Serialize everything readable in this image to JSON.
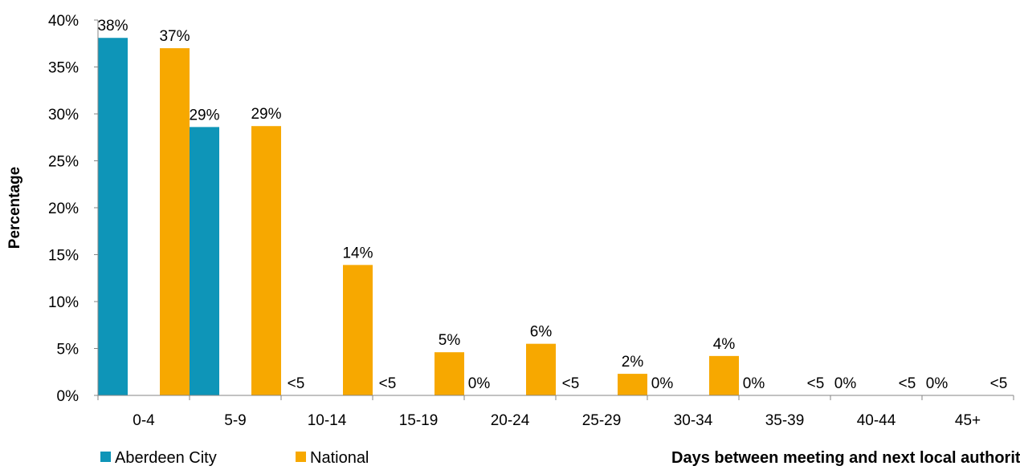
{
  "chart_data": {
    "type": "bar",
    "title": "",
    "xlabel": "Days between meeting and next local authority contact",
    "ylabel": "Percentage",
    "ylim": [
      0,
      40
    ],
    "yticks": [
      "0%",
      "5%",
      "10%",
      "15%",
      "20%",
      "25%",
      "30%",
      "35%",
      "40%"
    ],
    "grid": false,
    "legend_position": "bottom-left",
    "categories": [
      "0-4",
      "5-9",
      "10-14",
      "15-19",
      "20-24",
      "25-29",
      "30-34",
      "35-39",
      "40-44",
      "45+"
    ],
    "series": [
      {
        "name": "Aberdeen City",
        "color": "#0e95b8",
        "values": [
          38.1,
          28.6,
          0,
          0,
          0,
          0,
          0,
          0,
          0,
          0
        ],
        "labels": [
          "38%",
          "29%",
          "<5",
          "<5",
          "0%",
          "<5",
          "0%",
          "0%",
          "0%",
          "0%"
        ]
      },
      {
        "name": "National",
        "color": "#f7a800",
        "values": [
          37.0,
          28.7,
          13.9,
          4.6,
          5.5,
          2.3,
          4.2,
          0,
          0,
          0
        ],
        "labels": [
          "37%",
          "29%",
          "14%",
          "5%",
          "6%",
          "2%",
          "4%",
          "<5",
          "<5",
          "<5"
        ]
      }
    ]
  }
}
